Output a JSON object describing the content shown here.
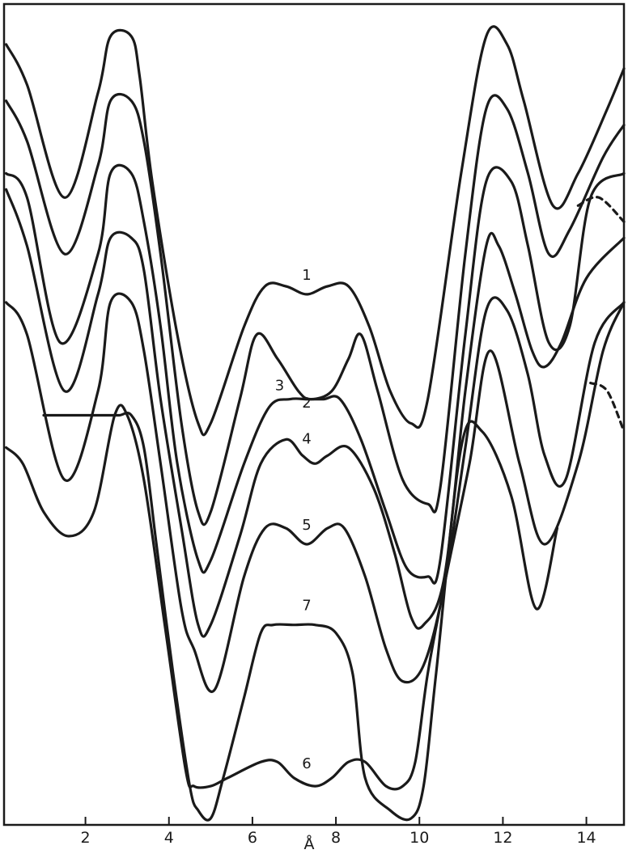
{
  "chart_data": {
    "type": "line",
    "title": "",
    "xlabel": "Å",
    "ylabel": "",
    "xlim": [
      0.05,
      14.9
    ],
    "ylim": [
      0,
      1
    ],
    "x_ticks": [
      2,
      4,
      6,
      8,
      10,
      12,
      14
    ],
    "grid": false,
    "legend": "none",
    "curve_labels": [
      "1",
      "2",
      "3",
      "4",
      "5",
      "7",
      "6"
    ],
    "series": [
      {
        "name": "1",
        "x": [
          0.1,
          0.6,
          1.5,
          2.3,
          2.6,
          3.1,
          3.3,
          3.6,
          4.2,
          4.7,
          5.0,
          5.8,
          6.3,
          6.8,
          7.3,
          7.8,
          8.3,
          8.8,
          9.3,
          9.8,
          10.2,
          11.0,
          11.6,
          12.1,
          12.5,
          13.2,
          13.8,
          14.5,
          14.9
        ],
        "y": [
          0.96,
          0.91,
          0.77,
          0.9,
          0.97,
          0.97,
          0.92,
          0.79,
          0.6,
          0.49,
          0.49,
          0.61,
          0.66,
          0.66,
          0.65,
          0.66,
          0.66,
          0.61,
          0.53,
          0.49,
          0.52,
          0.8,
          0.97,
          0.96,
          0.89,
          0.76,
          0.8,
          0.88,
          0.93
        ]
      },
      {
        "name": "2",
        "x": [
          0.1,
          0.6,
          1.5,
          2.3,
          2.6,
          3.1,
          3.4,
          3.8,
          4.3,
          4.7,
          5.0,
          5.7,
          6.1,
          6.6,
          7.1,
          7.4,
          7.9,
          8.3,
          8.6,
          9.0,
          9.6,
          10.2,
          10.5,
          11.1,
          11.6,
          12.1,
          12.6,
          13.1,
          13.6,
          14.4,
          14.9
        ],
        "y": [
          0.89,
          0.84,
          0.7,
          0.81,
          0.89,
          0.89,
          0.84,
          0.7,
          0.49,
          0.38,
          0.38,
          0.52,
          0.6,
          0.57,
          0.53,
          0.52,
          0.53,
          0.57,
          0.6,
          0.53,
          0.42,
          0.39,
          0.41,
          0.7,
          0.88,
          0.88,
          0.8,
          0.7,
          0.73,
          0.82,
          0.86
        ]
      },
      {
        "name": "3",
        "x": [
          0.1,
          0.6,
          1.4,
          2.3,
          2.6,
          3.1,
          3.4,
          3.8,
          4.2,
          4.7,
          5.0,
          5.8,
          6.4,
          6.9,
          7.3,
          7.7,
          8.1,
          8.6,
          9.2,
          9.7,
          10.2,
          10.5,
          11.1,
          11.6,
          12.2,
          12.6,
          13.1,
          13.6,
          14.1,
          14.9
        ],
        "y": [
          0.8,
          0.77,
          0.59,
          0.7,
          0.8,
          0.8,
          0.74,
          0.61,
          0.44,
          0.32,
          0.32,
          0.44,
          0.51,
          0.52,
          0.52,
          0.52,
          0.52,
          0.47,
          0.38,
          0.31,
          0.3,
          0.32,
          0.6,
          0.79,
          0.79,
          0.71,
          0.59,
          0.61,
          0.77,
          0.8
        ]
      },
      {
        "name": "4",
        "x": [
          0.1,
          0.6,
          1.5,
          2.3,
          2.6,
          3.1,
          3.4,
          3.8,
          4.3,
          4.7,
          5.0,
          5.7,
          6.2,
          6.8,
          7.2,
          7.5,
          7.8,
          8.3,
          8.9,
          9.4,
          9.8,
          10.1,
          10.6,
          11.1,
          11.6,
          11.9,
          12.3,
          12.7,
          13.0,
          13.4,
          14.0,
          14.9
        ],
        "y": [
          0.78,
          0.71,
          0.53,
          0.65,
          0.72,
          0.72,
          0.68,
          0.52,
          0.36,
          0.24,
          0.24,
          0.35,
          0.44,
          0.47,
          0.45,
          0.44,
          0.45,
          0.46,
          0.41,
          0.33,
          0.25,
          0.24,
          0.3,
          0.53,
          0.71,
          0.71,
          0.65,
          0.58,
          0.56,
          0.59,
          0.67,
          0.72
        ]
      },
      {
        "name": "5",
        "x": [
          0.1,
          0.6,
          1.5,
          2.3,
          2.6,
          3.1,
          3.4,
          3.8,
          4.3,
          4.6,
          5.1,
          5.8,
          6.3,
          6.8,
          7.3,
          7.8,
          8.2,
          8.7,
          9.2,
          9.6,
          10.1,
          10.6,
          11.1,
          11.6,
          12.1,
          12.6,
          13.0,
          13.5,
          14.2,
          14.9
        ],
        "y": [
          0.64,
          0.6,
          0.42,
          0.53,
          0.64,
          0.64,
          0.58,
          0.44,
          0.26,
          0.21,
          0.16,
          0.3,
          0.36,
          0.36,
          0.34,
          0.36,
          0.36,
          0.3,
          0.21,
          0.17,
          0.19,
          0.29,
          0.46,
          0.63,
          0.63,
          0.55,
          0.45,
          0.42,
          0.59,
          0.64
        ]
      },
      {
        "name": "6",
        "x": [
          0.1,
          0.5,
          1.0,
          1.6,
          2.2,
          2.7,
          3.0,
          3.4,
          3.9,
          4.4,
          4.6,
          5.0,
          5.4,
          6.2,
          6.6,
          7.0,
          7.5,
          7.9,
          8.3,
          8.7,
          9.2,
          9.6,
          9.9,
          10.2,
          10.6,
          11.2,
          11.7,
          12.4,
          13.0,
          13.8,
          14.4,
          14.9
        ],
        "y": [
          0.46,
          0.44,
          0.38,
          0.35,
          0.38,
          0.5,
          0.5,
          0.42,
          0.24,
          0.06,
          0.04,
          0.04,
          0.05,
          0.07,
          0.07,
          0.05,
          0.04,
          0.05,
          0.07,
          0.07,
          0.04,
          0.04,
          0.07,
          0.18,
          0.29,
          0.44,
          0.58,
          0.44,
          0.34,
          0.44,
          0.58,
          0.64
        ]
      },
      {
        "name": "7",
        "x": [
          1.0,
          1.5,
          2.0,
          2.4,
          2.8,
          3.1,
          3.4,
          3.7,
          4.1,
          4.5,
          4.7,
          5.0,
          5.3,
          5.8,
          6.2,
          6.5,
          7.0,
          7.5,
          8.0,
          8.4,
          8.7,
          9.3,
          9.8,
          10.1,
          10.4,
          11.0,
          11.5,
          12.2,
          12.8,
          13.3
        ],
        "y": [
          0.5,
          0.5,
          0.5,
          0.5,
          0.5,
          0.5,
          0.46,
          0.34,
          0.18,
          0.04,
          0.01,
          0.0,
          0.05,
          0.15,
          0.23,
          0.24,
          0.24,
          0.24,
          0.23,
          0.18,
          0.05,
          0.01,
          0.0,
          0.04,
          0.18,
          0.46,
          0.48,
          0.4,
          0.26,
          0.36
        ]
      }
    ],
    "dashed_segments": [
      {
        "series": "1",
        "x": [
          13.8,
          14.3,
          14.9
        ],
        "y": [
          0.76,
          0.77,
          0.74
        ]
      },
      {
        "series": "5",
        "x": [
          14.1,
          14.5,
          14.9
        ],
        "y": [
          0.54,
          0.53,
          0.48
        ]
      }
    ]
  }
}
